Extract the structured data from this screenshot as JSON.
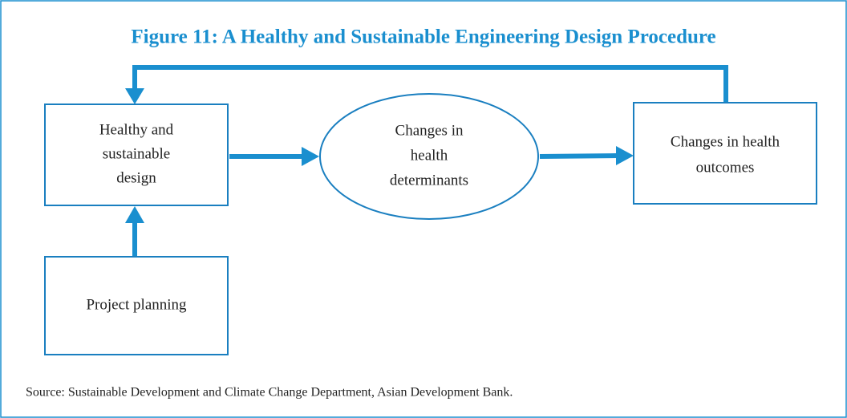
{
  "title": "Figure 11: A Healthy and Sustainable Engineering Design Procedure",
  "nodes": [
    {
      "label": [
        "Healthy and",
        "sustainable",
        "design"
      ]
    },
    {
      "label": [
        "Changes in",
        "health",
        "determinants"
      ]
    },
    {
      "label": [
        "Changes in health",
        "outcomes"
      ]
    },
    {
      "label": [
        "Project planning"
      ]
    }
  ],
  "source": "Source: Sustainable Development and Climate Change Department, Asian Development Bank."
}
